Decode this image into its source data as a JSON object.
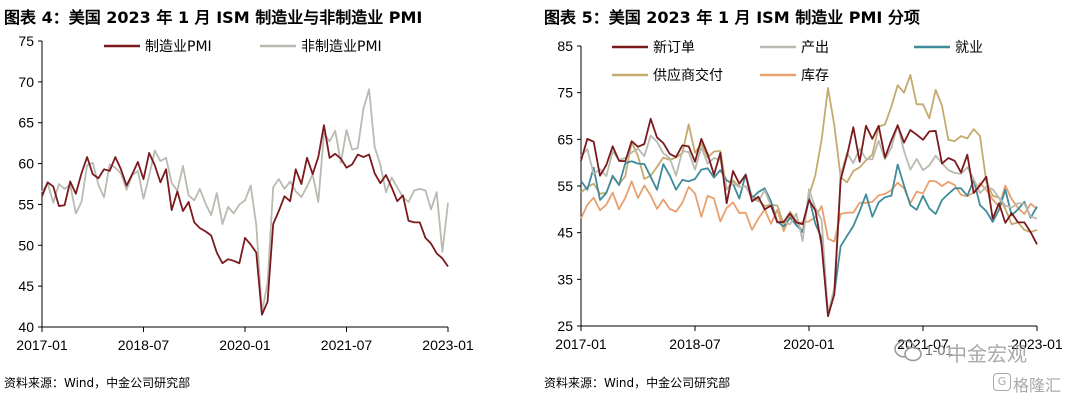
{
  "colors": {
    "manufacturing": "#7b1a1d",
    "non_manufacturing": "#b9bab0",
    "new_orders": "#7b1a1d",
    "production": "#b9bab0",
    "employment": "#3f8a9b",
    "supplier_deliveries": "#c5aa6d",
    "inventories": "#e8a06e"
  },
  "left": {
    "title": "图表 4：美国 2023 年 1 月 ISM 制造业与非制造业 PMI",
    "source": "资料来源：Wind，中金公司研究部"
  },
  "right": {
    "title": "图表 5：美国 2023 年 1 月 ISM 制造业 PMI 分项",
    "source": "资料来源：Wind，中金公司研究部"
  },
  "watermark": {
    "brand": "中金宏观",
    "brand2": "格隆汇",
    "overlap_text": "1-01"
  },
  "chart_data": [
    {
      "type": "line",
      "x_start": "2017-01",
      "x_ticks": [
        "2017-01",
        "2018-07",
        "2020-01",
        "2021-07",
        "2023-01"
      ],
      "ylim": [
        40,
        75
      ],
      "y_ticks": [
        40,
        45,
        50,
        55,
        60,
        65,
        70,
        75
      ],
      "legend_position": "top",
      "series": [
        {
          "name": "制造业PMI",
          "color_key": "manufacturing",
          "values": [
            56.0,
            57.7,
            57.2,
            54.8,
            54.9,
            57.8,
            56.3,
            58.8,
            60.8,
            58.7,
            58.2,
            59.3,
            59.1,
            60.8,
            59.3,
            57.3,
            58.7,
            60.2,
            58.1,
            61.3,
            59.8,
            57.7,
            59.3,
            54.3,
            56.6,
            54.2,
            55.3,
            52.8,
            52.1,
            51.7,
            51.2,
            49.1,
            47.8,
            48.3,
            48.1,
            47.8,
            50.9,
            50.1,
            49.1,
            41.5,
            43.1,
            52.6,
            54.2,
            56.0,
            55.4,
            59.3,
            57.5,
            60.7,
            58.7,
            60.8,
            64.7,
            60.7,
            61.2,
            60.6,
            59.5,
            59.9,
            61.1,
            60.8,
            61.1,
            58.8,
            57.6,
            58.6,
            57.1,
            55.4,
            56.1,
            53.0,
            52.8,
            52.8,
            50.9,
            50.2,
            49.0,
            48.4,
            47.4
          ]
        },
        {
          "name": "非制造业PMI",
          "color_key": "non_manufacturing",
          "values": [
            56.5,
            57.6,
            55.2,
            57.5,
            56.9,
            57.4,
            53.9,
            55.3,
            59.8,
            60.1,
            57.4,
            55.9,
            59.9,
            59.5,
            58.8,
            56.8,
            58.6,
            59.1,
            55.7,
            58.5,
            61.6,
            60.3,
            60.7,
            57.6,
            56.7,
            59.7,
            56.1,
            55.5,
            56.9,
            55.1,
            53.7,
            56.4,
            52.6,
            54.7,
            53.9,
            55.0,
            55.5,
            57.3,
            52.5,
            41.8,
            45.4,
            57.1,
            58.1,
            56.9,
            57.8,
            56.6,
            55.9,
            57.2,
            58.7,
            55.3,
            63.7,
            62.7,
            64.0,
            60.1,
            64.1,
            61.7,
            61.9,
            66.7,
            69.1,
            62.0,
            59.9,
            56.5,
            58.3,
            57.1,
            55.9,
            55.3,
            56.7,
            56.9,
            56.7,
            54.4,
            56.5,
            49.2,
            55.2
          ]
        }
      ]
    },
    {
      "type": "line",
      "x_start": "2017-01",
      "x_ticks": [
        "2017-01",
        "2018-07",
        "2020-01",
        "2021-07",
        "2023-01"
      ],
      "ylim": [
        25,
        85
      ],
      "y_ticks": [
        25,
        35,
        45,
        55,
        65,
        75,
        85
      ],
      "legend_position": "top",
      "series": [
        {
          "name": "新订单",
          "color_key": "new_orders",
          "values": [
            60.4,
            65.1,
            64.5,
            57.2,
            59.5,
            63.5,
            60.4,
            60.3,
            64.6,
            63.4,
            64.0,
            69.4,
            65.4,
            64.2,
            61.9,
            61.2,
            63.7,
            63.5,
            60.2,
            65.1,
            61.8,
            57.4,
            62.1,
            51.3,
            58.2,
            55.5,
            57.4,
            51.7,
            52.7,
            50.0,
            50.8,
            47.2,
            47.3,
            49.1,
            47.2,
            46.8,
            52.0,
            49.8,
            42.2,
            27.1,
            31.8,
            56.4,
            61.5,
            67.6,
            60.2,
            67.9,
            65.1,
            67.9,
            61.1,
            64.8,
            68.0,
            64.3,
            67.0,
            66.0,
            64.9,
            66.7,
            66.8,
            59.8,
            61.0,
            60.4,
            57.9,
            61.7,
            53.5,
            55.1,
            57.0,
            48.0,
            51.3,
            47.1,
            49.2,
            47.2,
            47.2,
            45.1,
            42.5
          ]
        },
        {
          "name": "产出",
          "color_key": "production",
          "values": [
            61.4,
            62.9,
            57.6,
            58.6,
            57.1,
            62.4,
            60.6,
            61.0,
            62.2,
            63.0,
            61.4,
            65.8,
            64.5,
            62.0,
            61.0,
            57.2,
            62.5,
            62.3,
            58.5,
            63.3,
            59.8,
            61.0,
            60.6,
            54.3,
            55.6,
            54.8,
            55.0,
            52.3,
            51.7,
            54.1,
            50.8,
            47.4,
            47.3,
            46.8,
            49.1,
            43.2,
            54.3,
            50.3,
            47.7,
            27.5,
            33.2,
            57.3,
            62.1,
            59.9,
            63.0,
            60.8,
            60.7,
            64.7,
            60.7,
            63.2,
            68.1,
            62.5,
            58.5,
            60.8,
            58.4,
            59.4,
            61.5,
            59.9,
            58.4,
            57.8,
            57.6,
            59.0,
            56.5,
            53.5,
            54.9,
            54.3,
            52.5,
            50.8,
            50.4,
            51.3,
            51.2,
            48.5,
            48.0
          ]
        },
        {
          "name": "就业",
          "color_key": "employment",
          "values": [
            56.1,
            54.2,
            58.9,
            52.0,
            53.5,
            57.2,
            55.2,
            59.9,
            60.3,
            59.8,
            59.7,
            57.0,
            54.2,
            59.7,
            57.3,
            54.2,
            56.3,
            56.0,
            56.5,
            58.5,
            58.8,
            56.8,
            58.4,
            56.2,
            55.5,
            52.3,
            57.5,
            52.4,
            53.7,
            54.5,
            51.7,
            47.4,
            46.3,
            48.2,
            46.6,
            45.1,
            52.6,
            46.9,
            43.8,
            27.5,
            32.1,
            42.1,
            44.3,
            46.4,
            49.6,
            53.2,
            48.4,
            51.5,
            52.6,
            52.9,
            59.6,
            55.1,
            50.9,
            49.9,
            52.9,
            50.2,
            49.0,
            52.0,
            53.3,
            54.5,
            54.5,
            52.9,
            56.3,
            50.9,
            49.6,
            47.3,
            49.9,
            54.2,
            48.7,
            50.0,
            51.6,
            48.2,
            50.6
          ]
        },
        {
          "name": "供应商交付",
          "color_key": "supplier_deliveries",
          "values": [
            53.6,
            54.8,
            55.5,
            53.3,
            53.6,
            57.0,
            55.4,
            57.1,
            64.4,
            61.4,
            56.5,
            57.2,
            59.1,
            61.1,
            60.6,
            61.1,
            62.0,
            68.2,
            62.1,
            64.1,
            61.1,
            62.4,
            62.5,
            54.2,
            56.2,
            54.9,
            54.9,
            52.9,
            52.0,
            50.7,
            51.0,
            50.8,
            46.9,
            49.5,
            47.5,
            45.1,
            52.9,
            57.3,
            65.0,
            76.0,
            68.0,
            56.9,
            55.8,
            58.2,
            59.0,
            60.5,
            61.7,
            67.7,
            68.2,
            72.0,
            76.6,
            75.0,
            78.8,
            72.5,
            72.5,
            69.5,
            75.6,
            72.2,
            64.9,
            64.6,
            65.7,
            65.2,
            67.2,
            65.7,
            55.9,
            52.9,
            52.5,
            50.1,
            46.8,
            47.2,
            45.6,
            45.1,
            45.6
          ]
        },
        {
          "name": "库存",
          "color_key": "inventories",
          "values": [
            48.0,
            51.0,
            52.5,
            49.8,
            51.0,
            53.6,
            50.0,
            52.5,
            56.0,
            52.4,
            55.1,
            53.0,
            50.1,
            52.1,
            50.1,
            49.5,
            51.4,
            54.8,
            53.4,
            48.4,
            52.9,
            52.3,
            47.4,
            50.3,
            51.5,
            49.2,
            49.3,
            45.6,
            48.0,
            50.0,
            46.9,
            49.9,
            45.3,
            48.5,
            47.1,
            47.2,
            47.4,
            48.3,
            50.7,
            43.7,
            43.1,
            49.0,
            49.3,
            49.3,
            51.4,
            51.4,
            51.6,
            53.0,
            53.3,
            54.1,
            55.7,
            54.5,
            51.3,
            53.8,
            53.4,
            56.1,
            56.0,
            55.0,
            55.9,
            55.2,
            53.1,
            52.8,
            53.6,
            55.6,
            54.2,
            52.1,
            50.6,
            55.1,
            52.2,
            50.3,
            49.0,
            51.2,
            50.1
          ]
        }
      ]
    }
  ]
}
